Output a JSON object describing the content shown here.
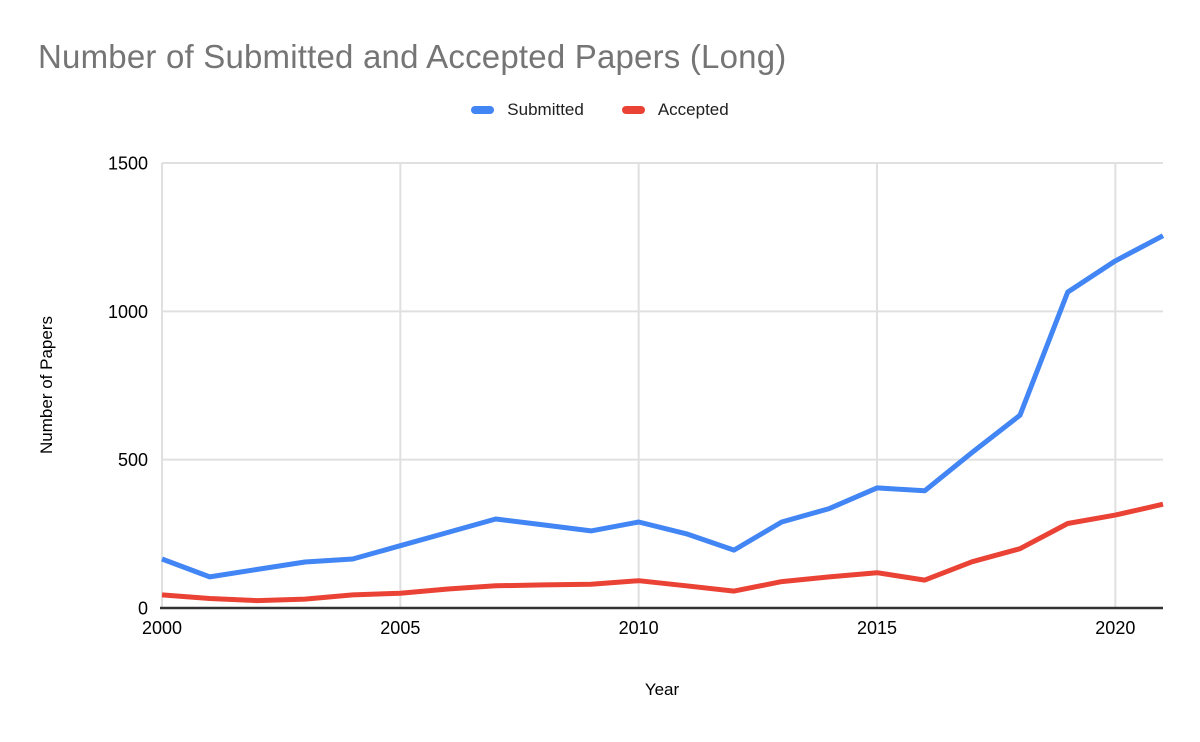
{
  "page": {
    "background": "#ffffff"
  },
  "legend": {
    "items": [
      {
        "label": "Submitted",
        "color": "#4285F4"
      },
      {
        "label": "Accepted",
        "color": "#EA4335"
      }
    ]
  },
  "chart_data": {
    "type": "line",
    "title": "Number of Submitted and Accepted Papers (Long)",
    "xlabel": "Year",
    "ylabel": "Number of Papers",
    "x": [
      2000,
      2001,
      2002,
      2003,
      2004,
      2005,
      2006,
      2007,
      2008,
      2009,
      2010,
      2011,
      2012,
      2013,
      2014,
      2015,
      2016,
      2017,
      2018,
      2019,
      2020,
      2021
    ],
    "series": [
      {
        "name": "Submitted",
        "color": "#4285F4",
        "values": [
          165,
          105,
          130,
          155,
          165,
          210,
          255,
          300,
          280,
          260,
          290,
          250,
          195,
          290,
          335,
          405,
          395,
          525,
          650,
          1065,
          1170,
          1255
        ]
      },
      {
        "name": "Accepted",
        "color": "#EA4335",
        "values": [
          44,
          32,
          25,
          30,
          44,
          50,
          64,
          75,
          78,
          80,
          92,
          75,
          57,
          89,
          105,
          119,
          94,
          156,
          200,
          285,
          313,
          350
        ]
      }
    ],
    "xlim": [
      2000,
      2021
    ],
    "ylim": [
      0,
      1500
    ],
    "xticks": [
      2000,
      2005,
      2010,
      2015,
      2020
    ],
    "yticks": [
      0,
      500,
      1000,
      1500
    ],
    "grid": true,
    "legend_position": "top-center",
    "colors": {
      "title": "#757575",
      "tick_label": "#000000",
      "gridline": "#e0e0e0",
      "axis_line": "#333333"
    }
  }
}
